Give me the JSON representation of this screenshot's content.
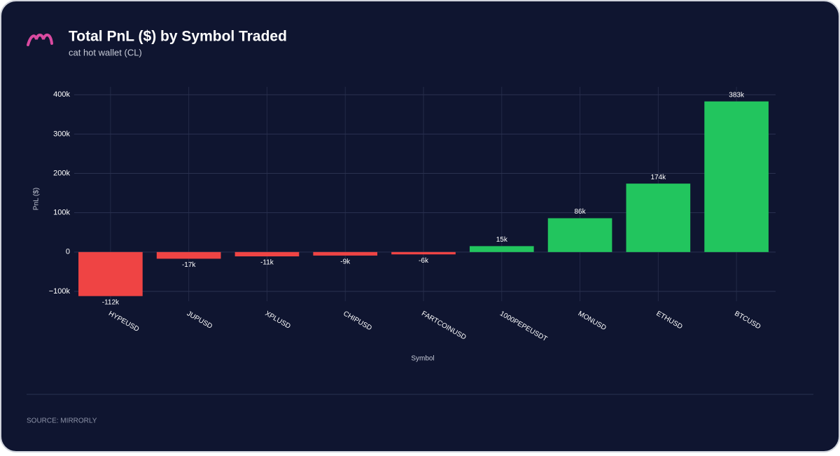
{
  "chart_data": {
    "type": "bar",
    "title": "Total PnL ($) by Symbol Traded",
    "subtitle": "cat hot wallet (CL)",
    "x_label": "Symbol",
    "y_label": "PnL ($)",
    "source": "SOURCE: MIRRORLY",
    "categories": [
      "HYPEUSD",
      "JUPUSD",
      "XPLUSD",
      "CHIPUSD",
      "FARTCOINUSD",
      "1000PEPEUSDT",
      "MONUSD",
      "ETHUSD",
      "BTCUSD"
    ],
    "values": [
      -112000,
      -17000,
      -11000,
      -9000,
      -6000,
      15000,
      86000,
      174000,
      383000
    ],
    "value_labels": [
      "-112k",
      "-17k",
      "-11k",
      "-9k",
      "-6k",
      "15k",
      "86k",
      "174k",
      "383k"
    ],
    "colors": [
      "#ef4444",
      "#ef4444",
      "#ef4444",
      "#ef4444",
      "#ef4444",
      "#22c55e",
      "#22c55e",
      "#22c55e",
      "#22c55e"
    ],
    "ylim": [
      -125000,
      420000
    ],
    "yticks": [
      {
        "value": -100000,
        "label": "−100k"
      },
      0,
      {
        "value": 100000,
        "label": "100k"
      },
      {
        "value": 200000,
        "label": "200k"
      },
      {
        "value": 300000,
        "label": "300k"
      },
      {
        "value": 400000,
        "label": "400k"
      }
    ],
    "grid": true
  }
}
